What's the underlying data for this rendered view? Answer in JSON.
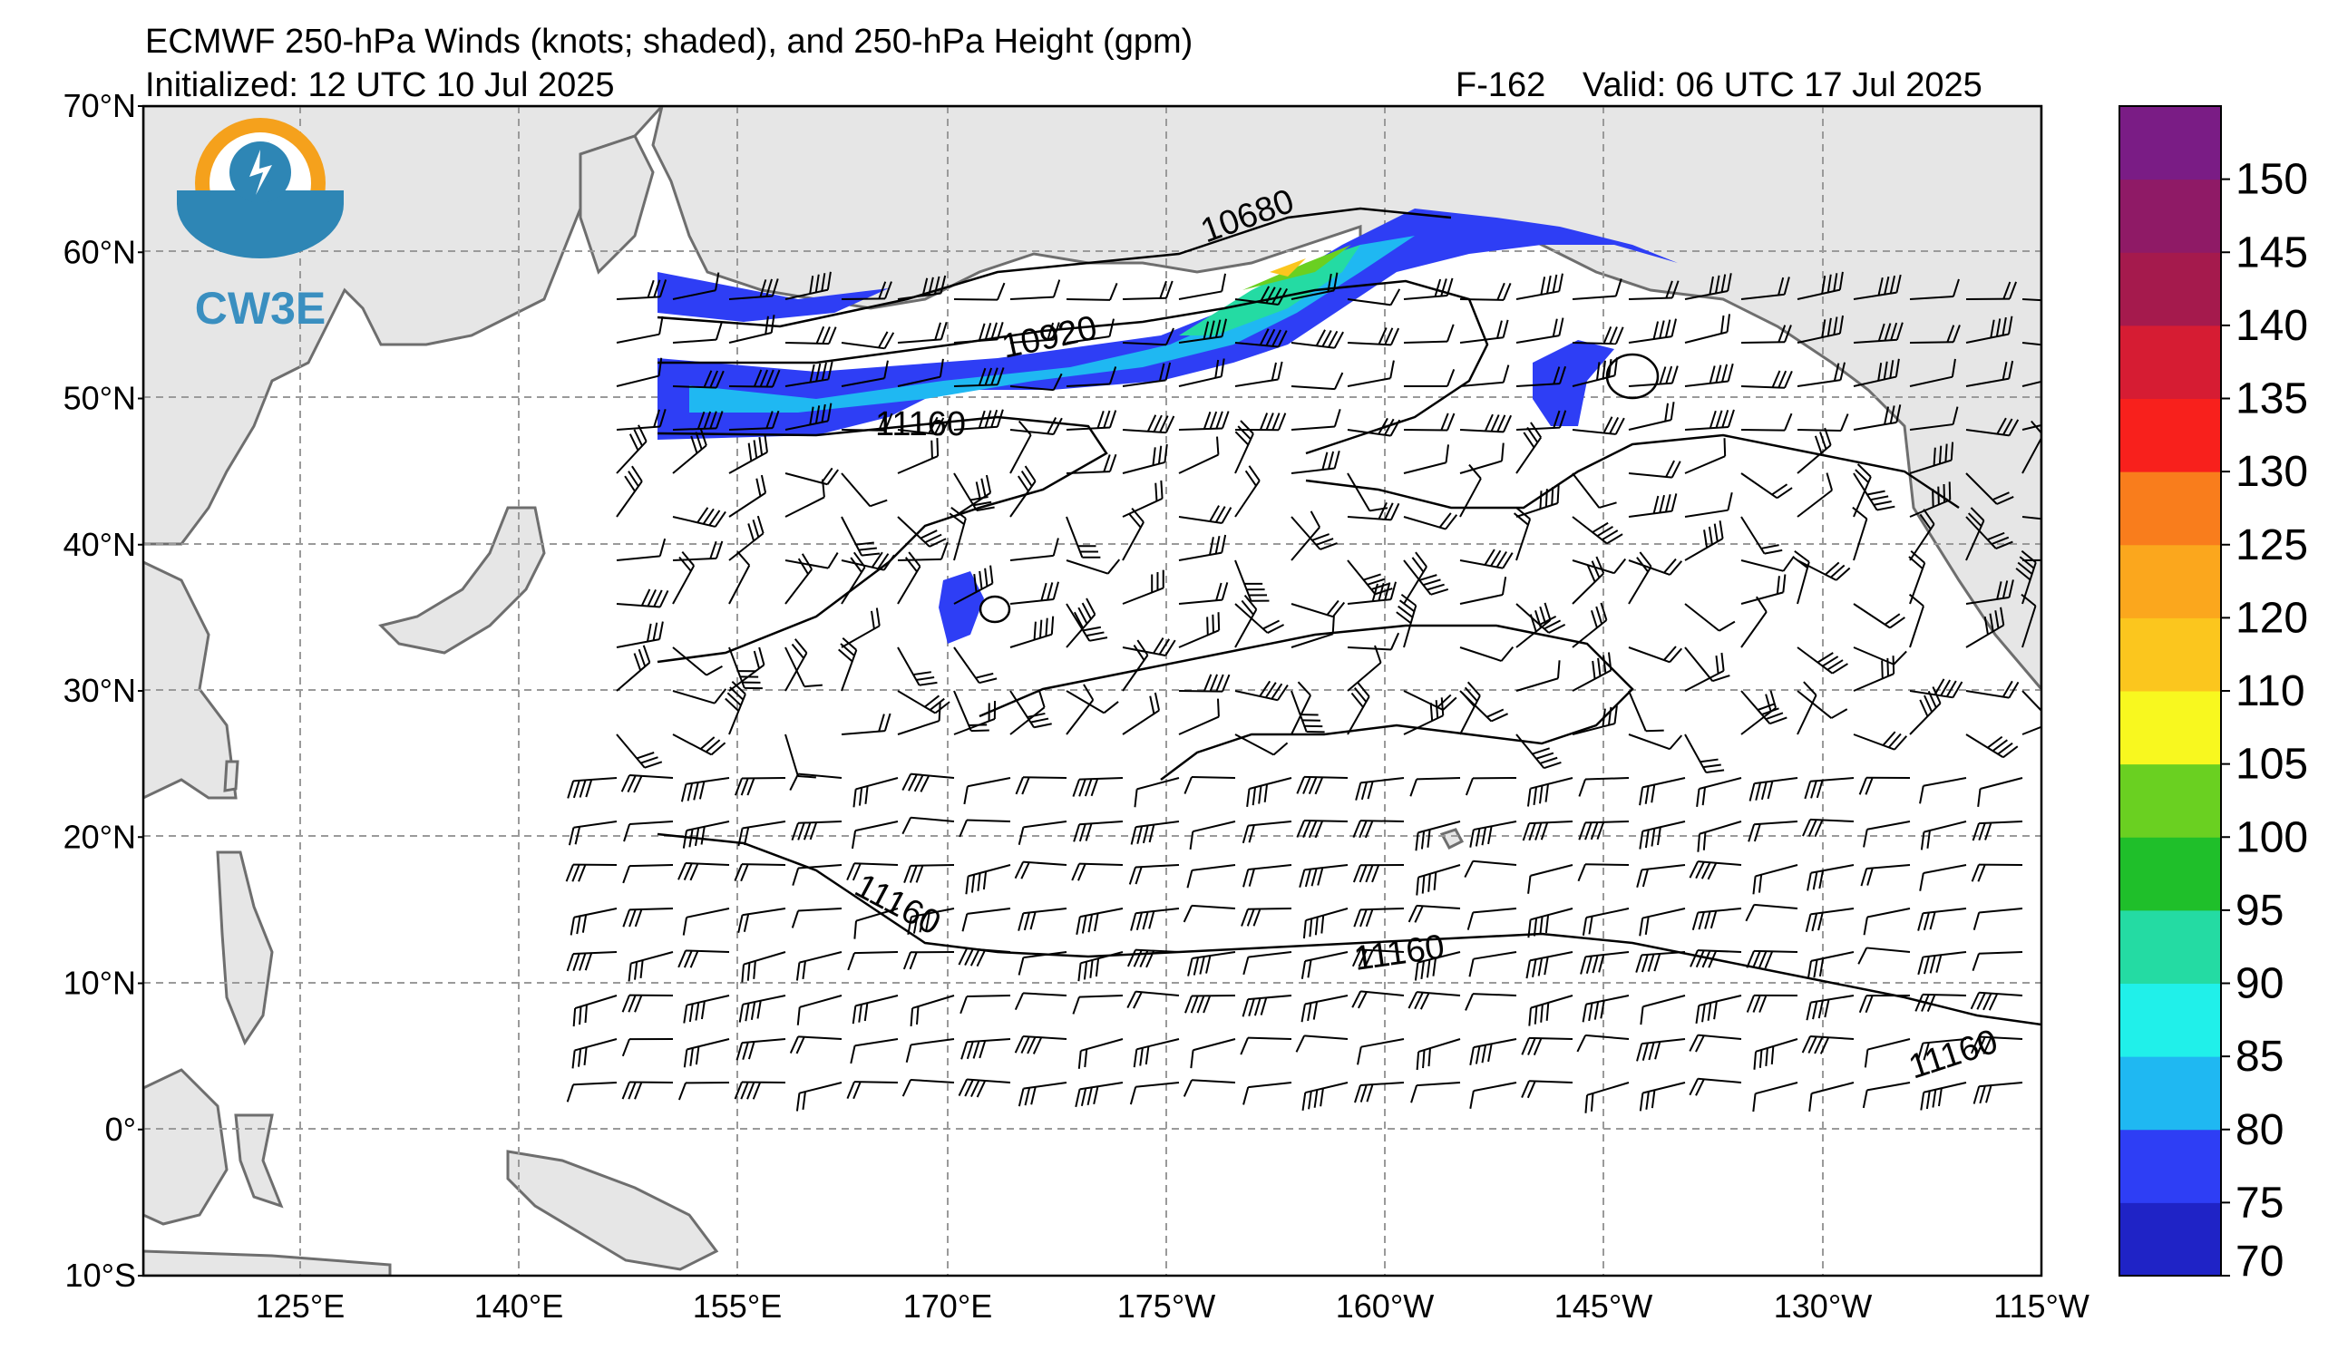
{
  "header": {
    "title": "ECMWF 250-hPa Winds (knots; shaded), and 250-hPa Height (gpm)",
    "initialized": "Initialized: 12 UTC 10 Jul 2025",
    "forecast": "F-162",
    "valid": "Valid: 06 UTC 17 Jul 2025"
  },
  "logo": {
    "text": "CW3E",
    "colors": {
      "ring": "#f5a11c",
      "ocean": "#2e86b5",
      "text": "#3a8fc0"
    }
  },
  "map": {
    "lat_labels": [
      "70°N",
      "60°N",
      "50°N",
      "40°N",
      "30°N",
      "20°N",
      "10°N",
      "0°",
      "10°S"
    ],
    "lon_labels": [
      "125°E",
      "140°E",
      "155°E",
      "170°E",
      "175°W",
      "160°W",
      "145°W",
      "130°W",
      "115°W"
    ],
    "lat_range": [
      -10,
      70
    ],
    "lon_range_east": [
      110,
      245
    ],
    "land_color": "#e6e6e6",
    "coast_color": "#6e6e6e",
    "grid": "dashed"
  },
  "contours": {
    "labels": [
      "10680",
      "10920",
      "11160",
      "11160",
      "11160",
      "11160"
    ]
  },
  "colorbar": {
    "ticks": [
      "70",
      "75",
      "80",
      "85",
      "90",
      "95",
      "100",
      "105",
      "110",
      "120",
      "125",
      "130",
      "135",
      "140",
      "145",
      "150"
    ],
    "colors": [
      "#1f23c6",
      "#2e3ef5",
      "#1fb8f2",
      "#20f0ea",
      "#24dba3",
      "#1fbf2a",
      "#6ad021",
      "#f8f81f",
      "#fbc61e",
      "#fba71d",
      "#f97d1c",
      "#f8201c",
      "#d61c33",
      "#a51a4d",
      "#8f1a66",
      "#7a1c85"
    ]
  }
}
